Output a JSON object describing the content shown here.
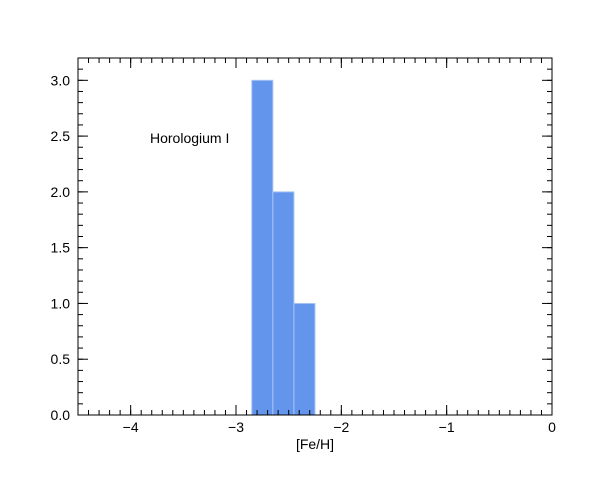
{
  "chart_data": {
    "type": "bar",
    "title": "",
    "xlabel": "[Fe/H]",
    "ylabel": "",
    "annotation": "Horologium I",
    "xlim": [
      -4.5,
      0
    ],
    "ylim": [
      0,
      3.2
    ],
    "bar_color": "#6495ED",
    "bar_edge_color": "#a9c4f5",
    "grid": false,
    "legend": "none",
    "bins": [
      {
        "x0": -2.85,
        "x1": -2.65,
        "value": 3
      },
      {
        "x0": -2.65,
        "x1": -2.45,
        "value": 2
      },
      {
        "x0": -2.45,
        "x1": -2.25,
        "value": 1
      }
    ],
    "x_ticks": [
      {
        "value": -4,
        "label": "−4"
      },
      {
        "value": -3,
        "label": "−3"
      },
      {
        "value": -2,
        "label": "−2"
      },
      {
        "value": -1,
        "label": "−1"
      },
      {
        "value": 0,
        "label": "0"
      }
    ],
    "x_minor_step": 0.1,
    "y_ticks": [
      {
        "value": 0,
        "label": "0.0"
      },
      {
        "value": 0.5,
        "label": "0.5"
      },
      {
        "value": 1,
        "label": "1.0"
      },
      {
        "value": 1.5,
        "label": "1.5"
      },
      {
        "value": 2,
        "label": "2.0"
      },
      {
        "value": 2.5,
        "label": "2.5"
      },
      {
        "value": 3,
        "label": "3.0"
      }
    ],
    "y_minor_step": 0.1
  }
}
